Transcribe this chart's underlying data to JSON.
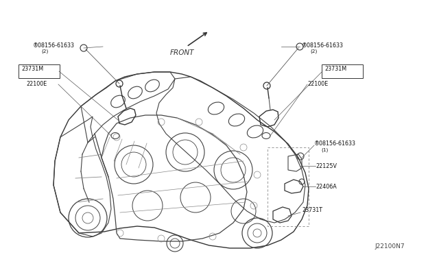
{
  "bg_color": "#ffffff",
  "diagram_id": "J22100N7",
  "line_color": "#404040",
  "light_line": "#888888",
  "label_color": "#111111",
  "font_size": 6.0,
  "font_family": "DejaVu Sans",
  "labels": {
    "bolt_top_left_line1": "®08156-61633",
    "bolt_top_left_line2": "(2)",
    "label_23731M_left": "23731M",
    "label_22100E_left": "22100E",
    "bolt_top_right_line1": "®08156-61633",
    "bolt_top_right_line2": "(2)",
    "label_23731M_right": "23731M",
    "label_22100E_right": "22100E",
    "bolt_side_line1": "®08156-61633",
    "bolt_side_line2": "(1)",
    "label_22125V": "22125V",
    "label_22406A": "22406A",
    "label_23731T": "23731T",
    "front": "FRONT"
  }
}
